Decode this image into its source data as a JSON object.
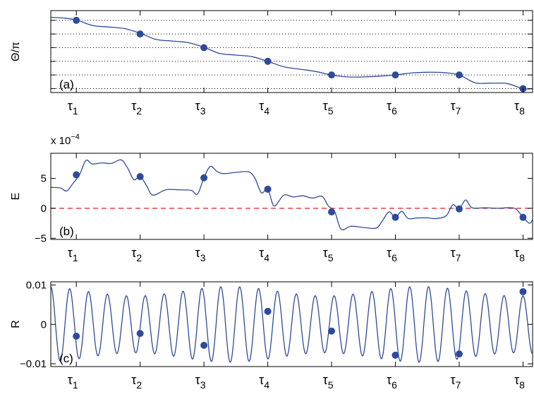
{
  "colors": {
    "curve": "#2f4a9a",
    "marker": "#2f4a9a",
    "zero_line": "#e03030",
    "grid": "#000000",
    "axis": "#000000"
  },
  "chart_data": [
    {
      "type": "line",
      "panel_label": "(a)",
      "ylabel": "Θ/π",
      "xlim": [
        0.6,
        8.15
      ],
      "ylim": [
        0.0,
        1.05
      ],
      "xticks": [
        1,
        2,
        3,
        4,
        5,
        6,
        7,
        8
      ],
      "xtick_labels": [
        {
          "base": "τ",
          "sub": "1"
        },
        {
          "base": "τ",
          "sub": "2"
        },
        {
          "base": "τ",
          "sub": "3"
        },
        {
          "base": "τ",
          "sub": "4"
        },
        {
          "base": "τ",
          "sub": "5"
        },
        {
          "base": "τ",
          "sub": "6"
        },
        {
          "base": "τ",
          "sub": "7"
        },
        {
          "base": "τ",
          "sub": "8"
        }
      ],
      "yticks": [
        0.05,
        0.225,
        0.4,
        0.575,
        0.75,
        0.925
      ],
      "ytick_labels": [
        "",
        "",
        "",
        "",
        "",
        ""
      ],
      "grid": "horizontal-dotted",
      "curve": {
        "x": [
          0.6,
          0.8,
          1.0,
          1.25,
          1.5,
          1.75,
          2.0,
          2.25,
          2.5,
          2.75,
          3.0,
          3.25,
          3.5,
          3.75,
          4.0,
          4.25,
          4.5,
          4.75,
          5.0,
          5.25,
          5.5,
          5.75,
          6.0,
          6.25,
          6.5,
          6.75,
          7.0,
          7.25,
          7.5,
          7.75,
          8.0,
          8.15
        ],
        "y": [
          0.965,
          0.955,
          0.93,
          0.86,
          0.84,
          0.82,
          0.76,
          0.68,
          0.66,
          0.64,
          0.58,
          0.5,
          0.48,
          0.46,
          0.4,
          0.33,
          0.3,
          0.27,
          0.225,
          0.2,
          0.2,
          0.21,
          0.225,
          0.25,
          0.26,
          0.255,
          0.225,
          0.125,
          0.12,
          0.115,
          0.05,
          0.05
        ]
      },
      "markers": {
        "x": [
          1,
          2,
          3,
          4,
          5,
          6,
          7,
          8
        ],
        "y": [
          0.925,
          0.75,
          0.575,
          0.4,
          0.225,
          0.225,
          0.225,
          0.05
        ]
      }
    },
    {
      "type": "line",
      "panel_label": "(b)",
      "ylabel": "E",
      "scale_label": {
        "prefix": "x 10",
        "exponent": "−4"
      },
      "xlim": [
        0.6,
        8.15
      ],
      "ylim": [
        -5.2,
        9.2
      ],
      "xticks": [
        1,
        2,
        3,
        4,
        5,
        6,
        7,
        8
      ],
      "xtick_labels": [
        {
          "base": "τ",
          "sub": "1"
        },
        {
          "base": "τ",
          "sub": "2"
        },
        {
          "base": "τ",
          "sub": "3"
        },
        {
          "base": "τ",
          "sub": "4"
        },
        {
          "base": "τ",
          "sub": "5"
        },
        {
          "base": "τ",
          "sub": "6"
        },
        {
          "base": "τ",
          "sub": "7"
        },
        {
          "base": "τ",
          "sub": "8"
        }
      ],
      "yticks": [
        -5,
        0,
        5
      ],
      "ytick_labels": [
        "−5",
        "0",
        "5"
      ],
      "reference_line": {
        "y": 0,
        "style": "dashed"
      },
      "curve": {
        "x": [
          0.6,
          0.75,
          0.85,
          0.95,
          1.05,
          1.15,
          1.25,
          1.4,
          1.55,
          1.7,
          1.8,
          1.9,
          2.0,
          2.1,
          2.2,
          2.4,
          2.6,
          2.8,
          2.9,
          3.0,
          3.1,
          3.2,
          3.3,
          3.5,
          3.7,
          3.8,
          3.9,
          4.0,
          4.1,
          4.25,
          4.4,
          4.55,
          4.7,
          4.85,
          4.95,
          5.05,
          5.15,
          5.3,
          5.5,
          5.7,
          5.8,
          5.9,
          6.0,
          6.1,
          6.2,
          6.35,
          6.5,
          6.65,
          6.8,
          6.9,
          7.0,
          7.1,
          7.2,
          7.4,
          7.6,
          7.8,
          7.9,
          8.0,
          8.1,
          8.15
        ],
        "y": [
          3.5,
          3.4,
          2.9,
          4.2,
          5.6,
          8.0,
          7.4,
          7.6,
          7.5,
          8.1,
          6.8,
          4.8,
          5.3,
          3.8,
          2.2,
          3.1,
          3.1,
          3.0,
          2.4,
          5.1,
          7.0,
          6.2,
          5.8,
          6.0,
          6.1,
          5.0,
          2.6,
          3.2,
          0.4,
          2.2,
          1.9,
          2.1,
          1.7,
          2.0,
          0.4,
          -0.6,
          -3.5,
          -3.0,
          -3.2,
          -3.3,
          -2.0,
          -0.6,
          -1.5,
          -0.5,
          -1.7,
          -1.6,
          -1.6,
          -1.7,
          -1.2,
          0.6,
          -0.1,
          1.4,
          0.1,
          0.1,
          0.0,
          0.1,
          -0.2,
          -1.5,
          -2.5,
          -1.9
        ]
      },
      "markers": {
        "x": [
          1,
          2,
          3,
          4,
          5,
          6,
          7,
          8
        ],
        "y": [
          5.6,
          5.3,
          5.1,
          3.2,
          -0.6,
          -1.5,
          -0.1,
          -1.5
        ]
      }
    },
    {
      "type": "line",
      "panel_label": "(c)",
      "ylabel": "R",
      "xlim": [
        0.6,
        8.15
      ],
      "ylim": [
        -0.0107,
        0.0108
      ],
      "xticks": [
        1,
        2,
        3,
        4,
        5,
        6,
        7,
        8
      ],
      "xtick_labels": [
        {
          "base": "τ",
          "sub": "1"
        },
        {
          "base": "τ",
          "sub": "2"
        },
        {
          "base": "τ",
          "sub": "3"
        },
        {
          "base": "τ",
          "sub": "4"
        },
        {
          "base": "τ",
          "sub": "5"
        },
        {
          "base": "τ",
          "sub": "6"
        },
        {
          "base": "τ",
          "sub": "7"
        },
        {
          "base": "τ",
          "sub": "8"
        }
      ],
      "yticks": [
        -0.01,
        0,
        0.01
      ],
      "ytick_labels": [
        "−0.01",
        "0",
        "0.01"
      ],
      "oscillation": {
        "x_start": 0.6,
        "x_end": 8.15,
        "period": 0.296,
        "phase": 0.6,
        "amplitude_min": 0.0072,
        "amplitude_max": 0.0096
      },
      "markers": {
        "x": [
          1,
          2,
          3,
          4,
          5,
          6,
          7,
          8
        ],
        "y": [
          -0.003,
          -0.0023,
          -0.0053,
          0.0033,
          -0.0017,
          -0.0078,
          -0.0075,
          0.0083
        ]
      }
    }
  ]
}
